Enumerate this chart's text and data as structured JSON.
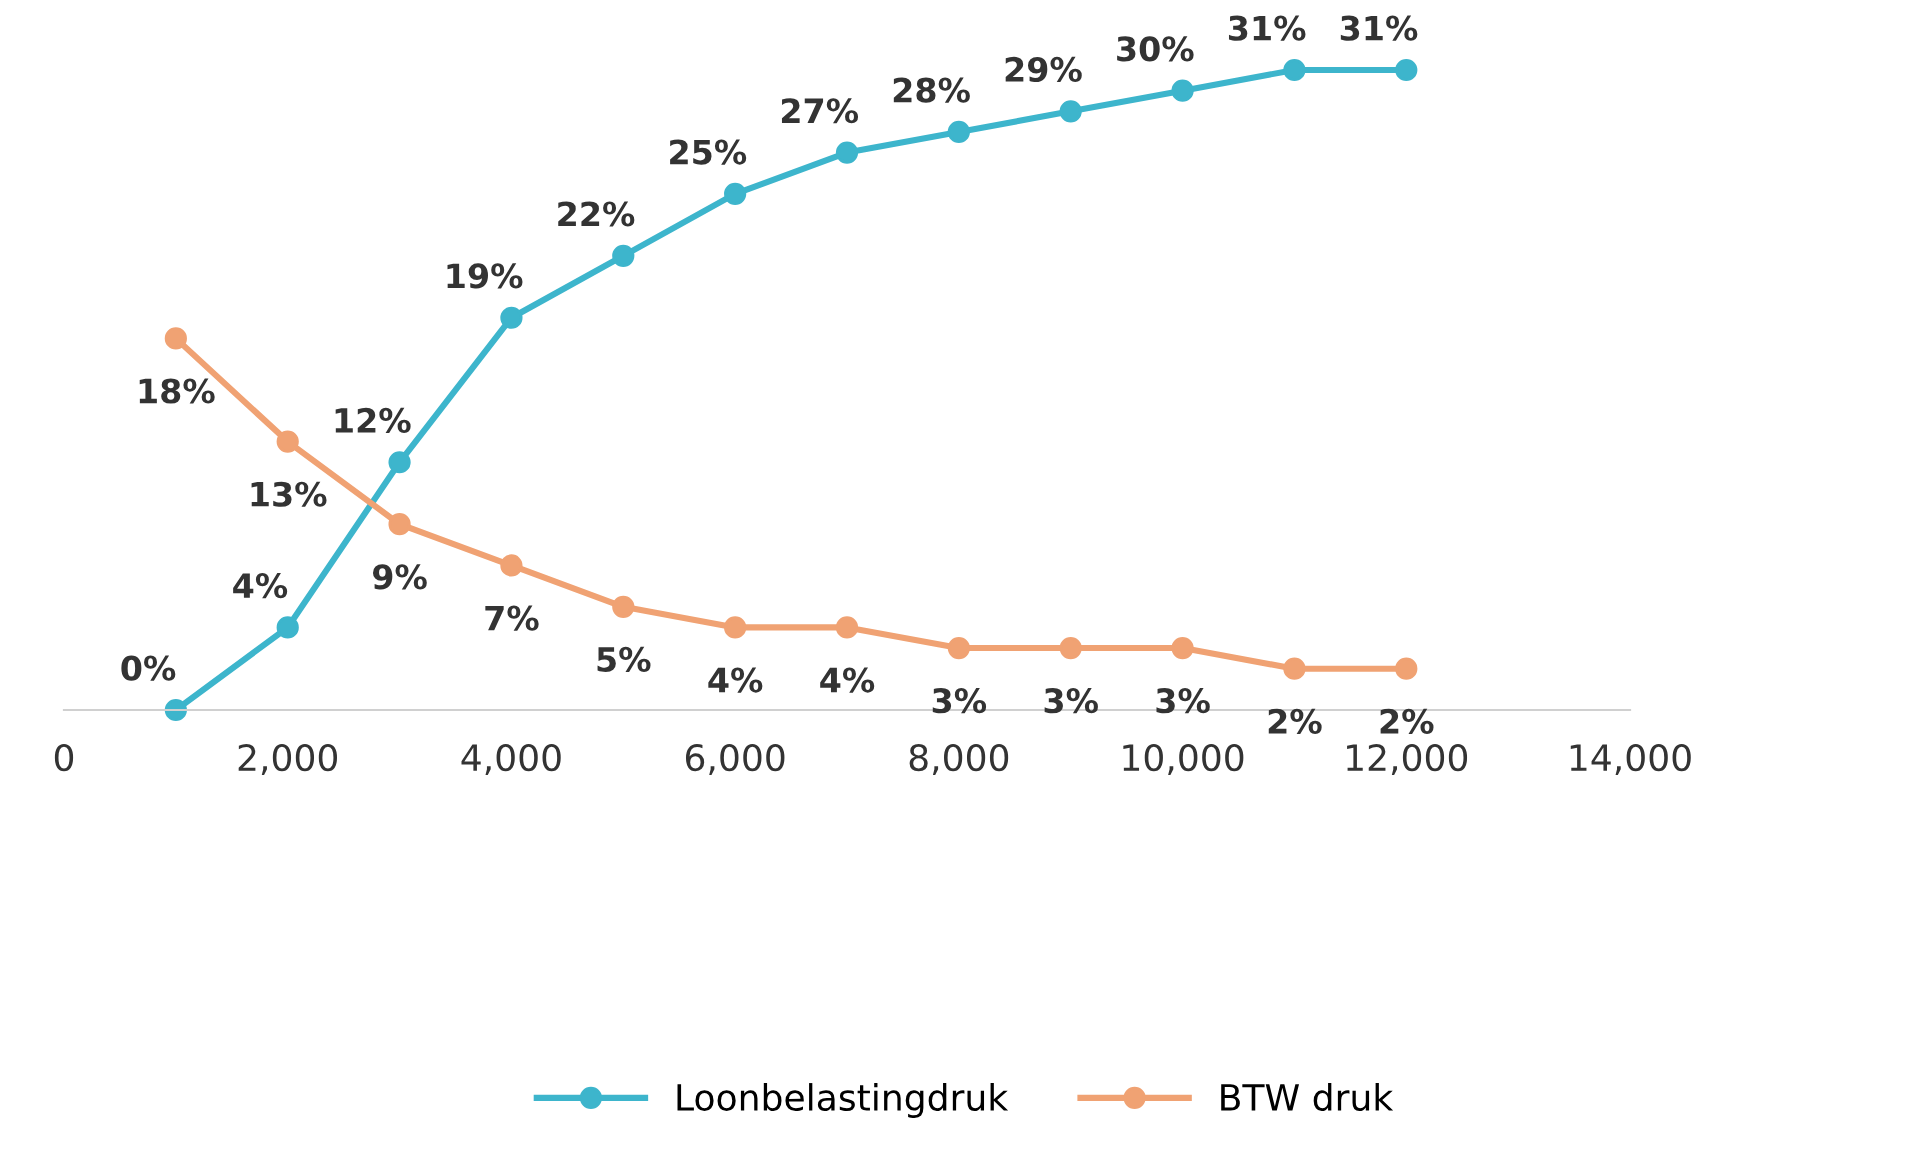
{
  "chart_data": {
    "type": "line",
    "x": [
      1000,
      2000,
      3000,
      4000,
      5000,
      6000,
      7000,
      8000,
      9000,
      10000,
      11000,
      12000
    ],
    "series": [
      {
        "name": "Loonbelastingdruk",
        "color": "#3db5cc",
        "values": [
          0,
          4,
          12,
          19,
          22,
          25,
          27,
          28,
          29,
          30,
          31,
          31
        ],
        "value_labels": [
          "0%",
          "4%",
          "12%",
          "19%",
          "22%",
          "25%",
          "27%",
          "28%",
          "29%",
          "30%",
          "31%",
          "31%"
        ]
      },
      {
        "name": "BTW druk",
        "color": "#f0a273",
        "values": [
          18,
          13,
          9,
          7,
          5,
          4,
          4,
          3,
          3,
          3,
          2,
          2
        ],
        "value_labels": [
          "18%",
          "13%",
          "9%",
          "7%",
          "5%",
          "4%",
          "4%",
          "3%",
          "3%",
          "3%",
          "2%",
          "2%"
        ]
      }
    ],
    "xlim": [
      0,
      14000
    ],
    "xticks": [
      0,
      {
        "value": 2000,
        "label": "2,000"
      },
      {
        "value": 4000,
        "label": "4,000"
      },
      {
        "value": 6000,
        "label": "6,000"
      },
      {
        "value": 8000,
        "label": "8,000"
      },
      {
        "value": 10000,
        "label": "10,000"
      },
      {
        "value": 12000,
        "label": "12,000"
      },
      {
        "value": 14000,
        "label": "14,000"
      }
    ],
    "tick_labels": "x",
    "marker": "circle",
    "line_style": "solid",
    "grid": false,
    "legend": "bottom"
  }
}
